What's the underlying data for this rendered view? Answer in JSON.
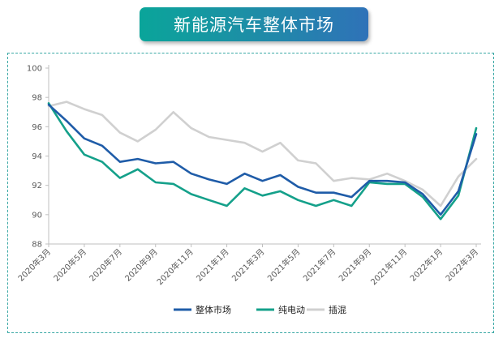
{
  "title": "新能源汽车整体市场",
  "chart_data": {
    "type": "line",
    "title": "新能源汽车整体市场",
    "xlabel": "",
    "ylabel": "",
    "ylim": [
      88,
      100
    ],
    "yticks": [
      88,
      90,
      92,
      94,
      96,
      98,
      100
    ],
    "grid": false,
    "legend_position": "bottom",
    "x": [
      "2020年3月",
      "2020年4月",
      "2020年5月",
      "2020年6月",
      "2020年7月",
      "2020年8月",
      "2020年9月",
      "2020年10月",
      "2020年11月",
      "2020年12月",
      "2021年1月",
      "2021年2月",
      "2021年3月",
      "2021年4月",
      "2021年5月",
      "2021年6月",
      "2021年7月",
      "2021年8月",
      "2021年9月",
      "2021年10月",
      "2021年11月",
      "2021年12月",
      "2022年1月",
      "2022年2月",
      "2022年3月"
    ],
    "tick_labels": [
      "2020年3月",
      "2020年5月",
      "2020年7月",
      "2020年9月",
      "2020年11月",
      "2021年1月",
      "2021年3月",
      "2021年5月",
      "2021年7月",
      "2021年9月",
      "2021年11月",
      "2022年1月",
      "2022年3月"
    ],
    "series": [
      {
        "name": "整体市场",
        "color": "#1f5ca8",
        "values": [
          97.5,
          96.4,
          95.2,
          94.7,
          93.6,
          93.8,
          93.5,
          93.6,
          92.8,
          92.4,
          92.1,
          92.8,
          92.3,
          92.7,
          91.9,
          91.5,
          91.5,
          91.2,
          92.3,
          92.3,
          92.2,
          91.4,
          90.0,
          91.6,
          95.5
        ]
      },
      {
        "name": "纯电动",
        "color": "#14a08a",
        "values": [
          97.6,
          95.7,
          94.1,
          93.6,
          92.5,
          93.1,
          92.2,
          92.1,
          91.4,
          91.0,
          90.6,
          91.8,
          91.3,
          91.6,
          91.0,
          90.6,
          91.0,
          90.6,
          92.2,
          92.1,
          92.1,
          91.2,
          89.7,
          91.3,
          95.9
        ]
      },
      {
        "name": "插混",
        "color": "#d0d0d0",
        "values": [
          97.4,
          97.7,
          97.2,
          96.8,
          95.6,
          95.0,
          95.8,
          97.0,
          95.9,
          95.3,
          95.1,
          94.9,
          94.3,
          94.9,
          93.7,
          93.5,
          92.3,
          92.5,
          92.4,
          92.8,
          92.3,
          91.7,
          90.6,
          92.6,
          93.8
        ]
      }
    ]
  }
}
